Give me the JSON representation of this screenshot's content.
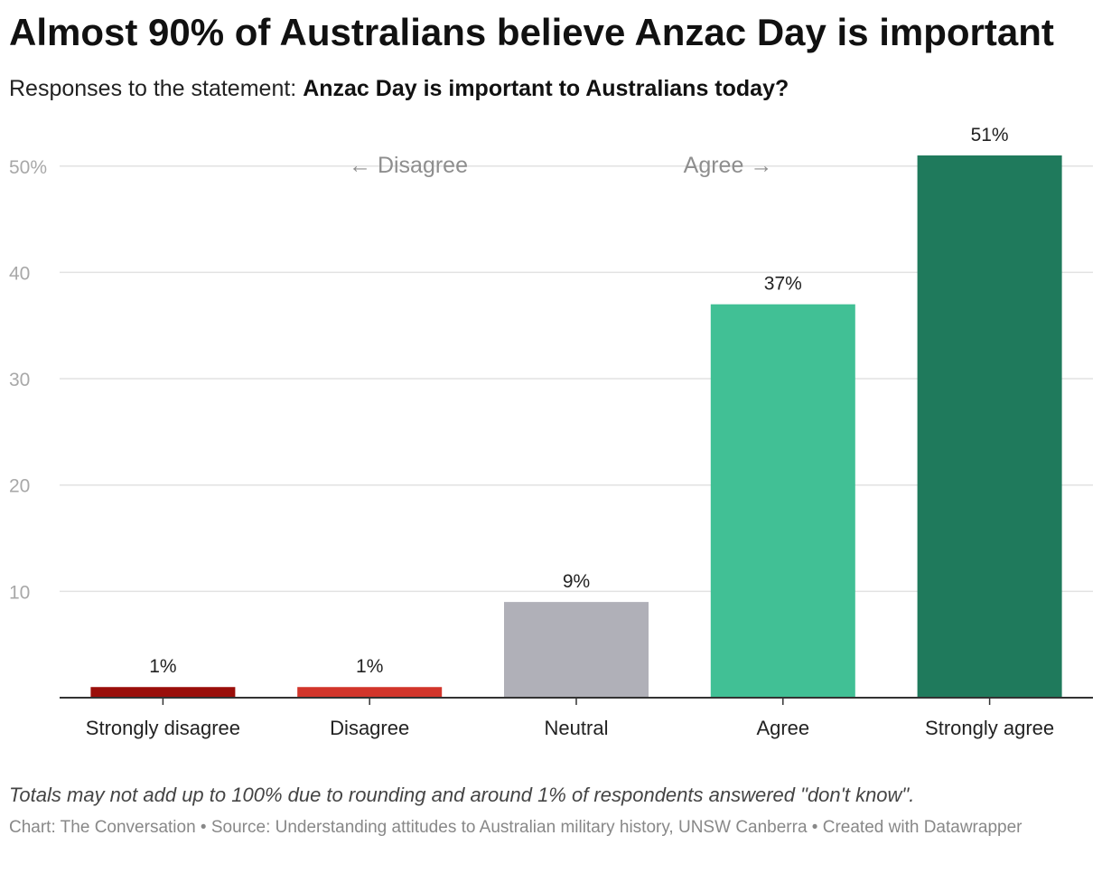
{
  "title": "Almost 90% of Australians believe Anzac Day is important",
  "subtitle": {
    "prefix": "Responses to the statement: ",
    "statement": "Anzac Day is important to Australians today?"
  },
  "annotations": {
    "disagree": "← Disagree",
    "agree": "Agree →"
  },
  "notes": "Totals may not add up to 100% due to rounding and around 1% of respondents answered \"don't know\".",
  "footer": {
    "chart_credit": "Chart: The Conversation",
    "source": "Source: Understanding attitudes to Australian military history, UNSW Canberra",
    "created_with": "Created with Datawrapper",
    "separator": " • "
  },
  "chart_data": {
    "type": "bar",
    "title": "Almost 90% of Australians believe Anzac Day is important",
    "xlabel": "",
    "ylabel": "",
    "ylim": [
      0,
      51
    ],
    "yticks": [
      10,
      20,
      30,
      40,
      50
    ],
    "ytick_labels": [
      "10",
      "20",
      "30",
      "40",
      "50%"
    ],
    "grid": true,
    "categories": [
      "Strongly disagree",
      "Disagree",
      "Neutral",
      "Agree",
      "Strongly agree"
    ],
    "values": [
      1,
      1,
      9,
      37,
      51
    ],
    "value_labels": [
      "1%",
      "1%",
      "9%",
      "37%",
      "51%"
    ],
    "colors": [
      "#9a0e0a",
      "#d2352b",
      "#b0b0b8",
      "#41c095",
      "#1f7a5c"
    ]
  }
}
